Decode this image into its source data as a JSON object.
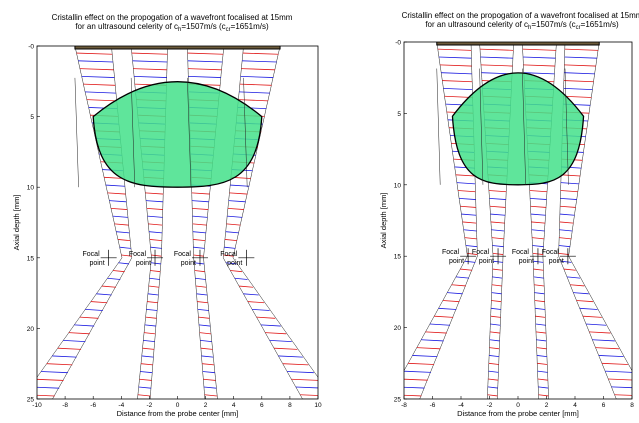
{
  "chart_data": [
    {
      "type": "line",
      "title_line1": "Cristallin effect on the propogation of a wavefront focalised at 15mm",
      "title_line2_prefix": "for an ultrasound celerity of c",
      "title_sub_h": "h",
      "title_mid": "=1507m/s (c",
      "title_sub_cr": "cr",
      "title_suffix": "=1651m/s)",
      "xlabel": "Distance from the probe center [mm]",
      "ylabel": "Axial depth [mm]",
      "xlim": [
        -10,
        10
      ],
      "ylim": [
        0,
        25
      ],
      "xticks": [
        "-10",
        "-8",
        "-6",
        "-4",
        "-2",
        "0",
        "2",
        "4",
        "6",
        "8",
        "10"
      ],
      "yticks": [
        "-0",
        "5",
        "10",
        "15",
        "20",
        "25"
      ],
      "focal_depth": 15,
      "lens": {
        "center_x": 0,
        "center_y": 6.2,
        "half_width": 6,
        "top_y": 2.4,
        "bottom_y": 10,
        "flat_y": 5
      },
      "beams": [
        {
          "x_top": -6,
          "x_focus": -3.6,
          "x_bottom": -10,
          "width_top": 2.6,
          "width_bottom": 2.2
        },
        {
          "x_top": -2,
          "x_focus": -1.5,
          "x_bottom": -2.4,
          "width_top": 2.6,
          "width_bottom": 0.9
        },
        {
          "x_top": 2,
          "x_focus": 1.5,
          "x_bottom": 2.4,
          "width_top": 2.6,
          "width_bottom": 0.9
        },
        {
          "x_top": 6,
          "x_focus": 3.6,
          "x_bottom": 10,
          "width_top": 2.6,
          "width_bottom": 2.2
        }
      ],
      "focal_points": [
        {
          "x": -4.9,
          "label_line1": "Focal",
          "label_line2": "point"
        },
        {
          "x": -1.6,
          "label_line1": "Focal",
          "label_line2": "point"
        },
        {
          "x": 1.6,
          "label_line1": "Focal",
          "label_line2": "point"
        },
        {
          "x": 4.9,
          "label_line1": "Focal",
          "label_line2": "point"
        }
      ],
      "colors": {
        "lens_fill": "#43e08a",
        "red": "#e01818",
        "blue": "#1a1ae0",
        "probe": "#6b5a3a"
      }
    },
    {
      "type": "line",
      "title_line1": "Cristallin effect on the propogation of a wavefront focalised at 15mm",
      "title_line2_prefix": "for an ultrasound celerity of c",
      "title_sub_h": "h",
      "title_mid": "=1507m/s (c",
      "title_sub_cr": "cr",
      "title_suffix": "=1651m/s)",
      "xlabel": "Distance from the probe center [mm]",
      "ylabel": "Axial depth [mm]",
      "xlim": [
        -8,
        8
      ],
      "ylim": [
        0,
        25
      ],
      "xticks": [
        "-8",
        "-6",
        "-4",
        "-2",
        "0",
        "2",
        "4",
        "6",
        "8"
      ],
      "yticks": [
        "-0",
        "5",
        "10",
        "15",
        "20",
        "25"
      ],
      "focal_depth": 15,
      "lens": {
        "center_x": 0,
        "center_y": 6,
        "half_width": 4.6,
        "top_y": 2,
        "bottom_y": 10,
        "flat_y": 5.2
      },
      "beams": [
        {
          "x_top": -4.5,
          "x_focus": -3.2,
          "x_bottom": -8,
          "width_top": 2.4,
          "width_bottom": 2.2
        },
        {
          "x_top": -1.5,
          "x_focus": -1.4,
          "x_bottom": -1.8,
          "width_top": 2.4,
          "width_bottom": 0.7
        },
        {
          "x_top": 1.5,
          "x_focus": 1.4,
          "x_bottom": 1.8,
          "width_top": 2.4,
          "width_bottom": 0.7
        },
        {
          "x_top": 4.5,
          "x_focus": 3.2,
          "x_bottom": 8,
          "width_top": 2.4,
          "width_bottom": 2.2
        }
      ],
      "focal_points": [
        {
          "x": -3.5,
          "label_line1": "Focal",
          "label_line2": "point"
        },
        {
          "x": -1.4,
          "label_line1": "Focal",
          "label_line2": "point"
        },
        {
          "x": 1.4,
          "label_line1": "Focal",
          "label_line2": "point"
        },
        {
          "x": 3.5,
          "label_line1": "Focal",
          "label_line2": "point"
        }
      ],
      "colors": {
        "lens_fill": "#43e08a",
        "red": "#e01818",
        "blue": "#1a1ae0",
        "probe": "#6b5a3a"
      }
    }
  ]
}
